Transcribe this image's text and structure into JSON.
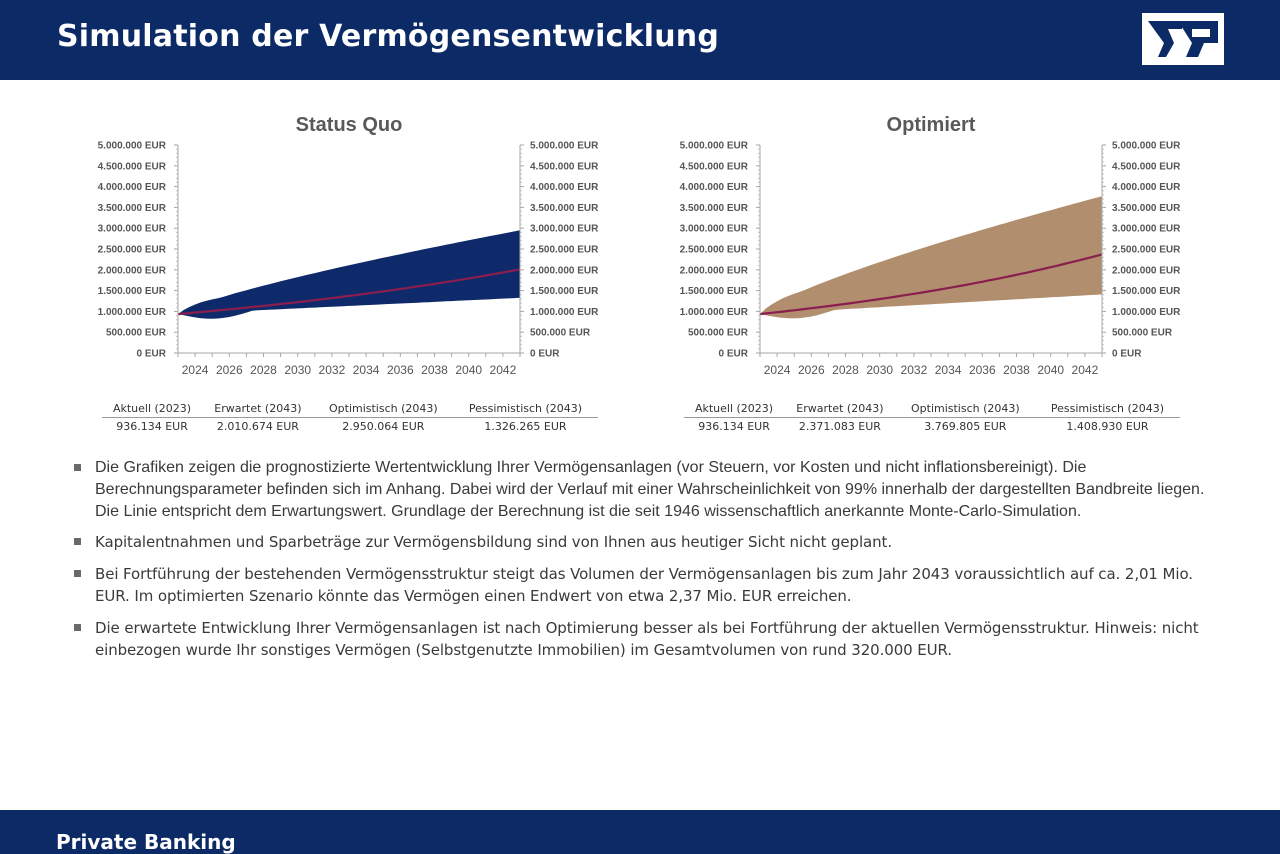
{
  "header": {
    "title": "Simulation der Vermögensentwicklung"
  },
  "footer": {
    "label": "Private Banking"
  },
  "colors": {
    "header_bg": "#0c2a66",
    "status_quo_band": "#0e2a6b",
    "optimiert_band": "#b08e6e",
    "expected_line": "#8a1e4f"
  },
  "chart_data": [
    {
      "type": "area",
      "title": "Status Quo",
      "x_ticks": [
        "2024",
        "2026",
        "2028",
        "2030",
        "2032",
        "2034",
        "2036",
        "2038",
        "2040",
        "2042"
      ],
      "y_ticks": [
        "0 EUR",
        "500.000 EUR",
        "1.000.000 EUR",
        "1.500.000 EUR",
        "2.000.000 EUR",
        "2.500.000 EUR",
        "3.000.000 EUR",
        "3.500.000 EUR",
        "4.000.000 EUR",
        "4.500.000 EUR",
        "5.000.000 EUR"
      ],
      "ylim": [
        0,
        5000000
      ],
      "xlim": [
        2023,
        2043
      ],
      "start_value": 936134,
      "expected_end": 2010674,
      "optimistic_end": 2950064,
      "pessimistic_end": 1326265,
      "summary_headers": [
        "Aktuell (2023)",
        "Erwartet (2043)",
        "Optimistisch (2043)",
        "Pessimistisch (2043)"
      ],
      "summary_values": [
        "936.134 EUR",
        "2.010.674 EUR",
        "2.950.064 EUR",
        "1.326.265 EUR"
      ]
    },
    {
      "type": "area",
      "title": "Optimiert",
      "x_ticks": [
        "2024",
        "2026",
        "2028",
        "2030",
        "2032",
        "2034",
        "2036",
        "2038",
        "2040",
        "2042"
      ],
      "y_ticks": [
        "0 EUR",
        "500.000 EUR",
        "1.000.000 EUR",
        "1.500.000 EUR",
        "2.000.000 EUR",
        "2.500.000 EUR",
        "3.000.000 EUR",
        "3.500.000 EUR",
        "4.000.000 EUR",
        "4.500.000 EUR",
        "5.000.000 EUR"
      ],
      "ylim": [
        0,
        5000000
      ],
      "xlim": [
        2023,
        2043
      ],
      "start_value": 936134,
      "expected_end": 2371083,
      "optimistic_end": 3769805,
      "pessimistic_end": 1408930,
      "summary_headers": [
        "Aktuell (2023)",
        "Erwartet (2043)",
        "Optimistisch (2043)",
        "Pessimistisch (2043)"
      ],
      "summary_values": [
        "936.134 EUR",
        "2.371.083 EUR",
        "3.769.805 EUR",
        "1.408.930 EUR"
      ]
    }
  ],
  "bullets": [
    "Die Grafiken zeigen die prognostizierte Wertentwicklung Ihrer Vermögensanlagen (vor Steuern, vor Kosten und nicht inflationsbereinigt). Die Berechnungsparameter befinden sich im Anhang. Dabei wird der Verlauf mit einer Wahrscheinlichkeit von 99% innerhalb der dargestellten Bandbreite liegen. Die Linie entspricht dem Erwartungswert. Grundlage der Berechnung ist die seit 1946 wissenschaftlich anerkannte Monte-Carlo-Simulation.",
    "Kapitalentnahmen und Sparbeträge zur Vermögensbildung sind von Ihnen aus heutiger Sicht nicht geplant.",
    "Bei Fortführung der bestehenden Vermögensstruktur steigt das Volumen der Vermögensanlagen bis zum Jahr 2043 voraussichtlich auf ca. 2,01 Mio. EUR. Im optimierten Szenario könnte das Vermögen einen Endwert von etwa 2,37 Mio. EUR erreichen.",
    "Die erwartete Entwicklung Ihrer Vermögensanlagen ist nach Optimierung besser als bei Fortführung der aktuellen Vermögensstruktur. Hinweis: nicht einbezogen wurde Ihr sonstiges Vermögen (Selbstgenutzte Immobilien) im Gesamtvolumen von rund 320.000 EUR."
  ]
}
